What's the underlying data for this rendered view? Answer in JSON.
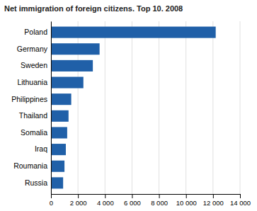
{
  "chart_data": {
    "type": "bar",
    "orientation": "horizontal",
    "title": "Net immigration of foreign citizens. Top 10. 2008",
    "categories": [
      "Russia",
      "Roumania",
      "Iraq",
      "Somalia",
      "Thailand",
      "Philippines",
      "Lithuania",
      "Sweden",
      "Germany",
      "Poland"
    ],
    "values": [
      900,
      1000,
      1100,
      1200,
      1300,
      1500,
      2400,
      3100,
      3600,
      12200
    ],
    "color": "#2060a8",
    "xlim": [
      0,
      14000
    ],
    "xticks": [
      0,
      {
        "value": 2000,
        "label": "2 000"
      },
      {
        "value": 4000,
        "label": "4 000"
      },
      {
        "value": 6000,
        "label": "6 000"
      },
      {
        "value": 8000,
        "label": "8 000"
      },
      {
        "value": 10000,
        "label": "10 000"
      },
      {
        "value": 12000,
        "label": "12 000"
      },
      {
        "value": 14000,
        "label": "14 000"
      }
    ],
    "grid": true
  }
}
